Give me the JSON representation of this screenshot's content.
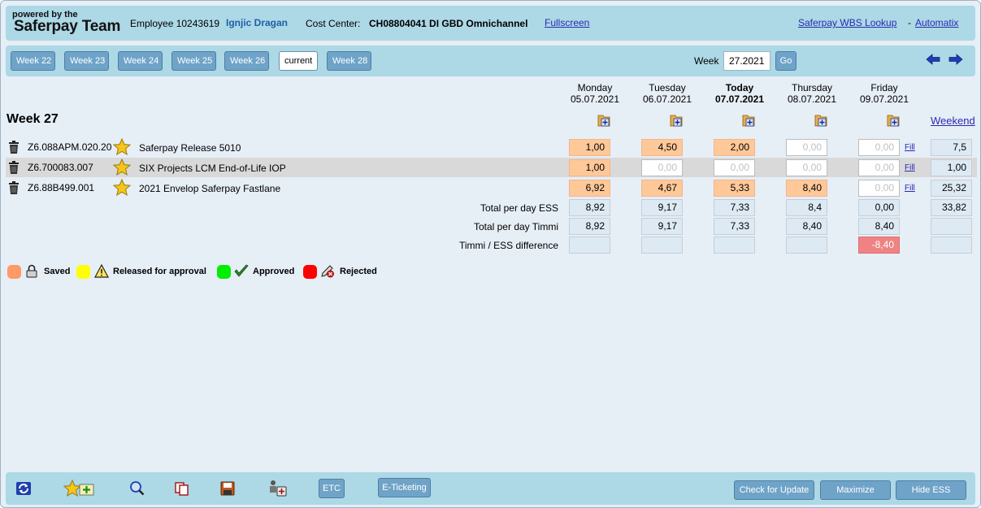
{
  "header": {
    "logo_small": "powered by the",
    "logo_big": "Saferpay Team",
    "employee_label": "Employee 10243619",
    "employee_name": "Ignjic Dragan",
    "cost_center_label": "Cost Center:",
    "cost_center_value": "CH08804041  DI GBD Omnichannel",
    "fullscreen": "Fullscreen",
    "wbs_lookup": "Saferpay WBS Lookup",
    "separator": "-",
    "automatix": "Automatix"
  },
  "weeks": {
    "buttons": [
      "Week 22",
      "Week 23",
      "Week 24",
      "Week 25",
      "Week 26",
      "current",
      "Week 28"
    ],
    "week_label": "Week",
    "week_value": "27.2021",
    "go": "Go"
  },
  "days": [
    {
      "name": "Monday",
      "date": "05.07.2021"
    },
    {
      "name": "Tuesday",
      "date": "06.07.2021"
    },
    {
      "name": "Today",
      "date": "07.07.2021"
    },
    {
      "name": "Thursday",
      "date": "08.07.2021"
    },
    {
      "name": "Friday",
      "date": "09.07.2021"
    }
  ],
  "weekend_label": "Weekend",
  "week_title": "Week 27",
  "fill_label": "Fill",
  "rows": [
    {
      "code": "Z6.088APM.020.20",
      "name": "Saferpay Release 5010",
      "values": [
        "1,00",
        "4,50",
        "2,00",
        "0,00",
        "0,00"
      ],
      "weekend": "7,5"
    },
    {
      "code": "Z6.700083.007",
      "name": "SIX Projects LCM End-of-Life IOP",
      "values": [
        "1,00",
        "0,00",
        "0,00",
        "0,00",
        "0,00"
      ],
      "weekend": "1,00"
    },
    {
      "code": "Z6.88B499.001",
      "name": "2021 Envelop Saferpay Fastlane",
      "values": [
        "6,92",
        "4,67",
        "5,33",
        "8,40",
        "0,00"
      ],
      "weekend": "25,32"
    }
  ],
  "summary": [
    {
      "label": "Total per day ESS",
      "values": [
        "8,92",
        "9,17",
        "7,33",
        "8,4",
        "0,00"
      ],
      "weekend": "33,82"
    },
    {
      "label": "Total per day Timmi",
      "values": [
        "8,92",
        "9,17",
        "7,33",
        "8,40",
        "8,40"
      ],
      "weekend": ""
    },
    {
      "label": "Timmi / ESS difference",
      "values": [
        "",
        "",
        "",
        "",
        "-8,40"
      ],
      "weekend": ""
    }
  ],
  "legend": {
    "saved": "Saved",
    "released": "Released for approval",
    "approved": "Approved",
    "rejected": "Rejected"
  },
  "colors": {
    "saved": "#ff9966",
    "released": "#ffff00",
    "approved": "#00ee00",
    "rejected": "#ff0000"
  },
  "footer": {
    "etc": "ETC",
    "eticketing": "E-Ticketing",
    "check_update": "Check for Update",
    "maximize": "Maximize",
    "hide_ess": "Hide ESS"
  }
}
